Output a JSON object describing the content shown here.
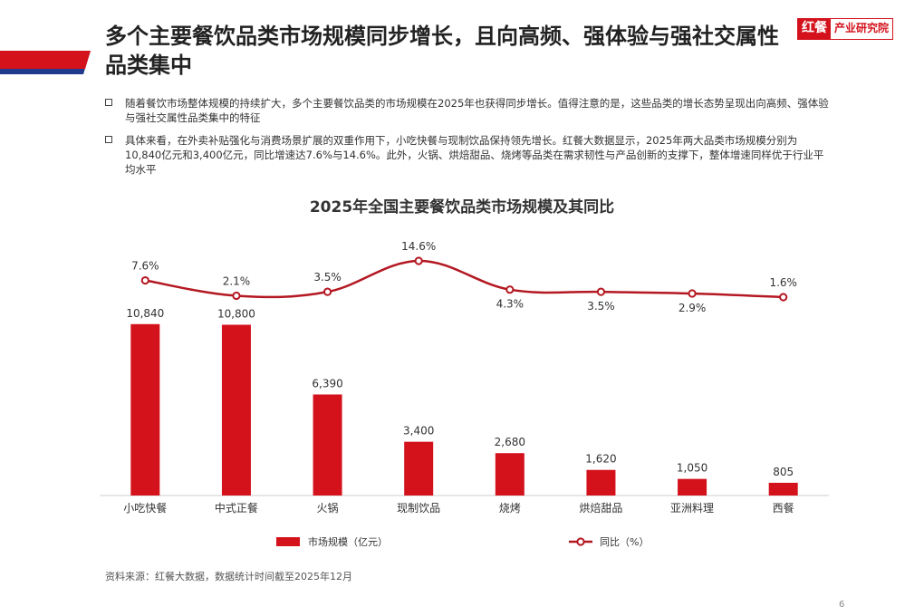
{
  "page": {
    "title": "多个主要餐饮品类市场规模同步增长，且向高频、强体验与强社交属性品类集中",
    "logo": {
      "mark": "红餐",
      "text": "产业研究院"
    },
    "bullets": [
      "随着餐饮市场整体规模的持续扩大，多个主要餐饮品类的市场规模在2025年也获得同步增长。值得注意的是，这些品类的增长态势呈现出向高频、强体验与强社交属性品类集中的特征",
      "具体来看，在外卖补贴强化与消费场景扩展的双重作用下，小吃快餐与现制饮品保持领先增长。红餐大数据显示，2025年两大品类市场规模分别为10,840亿元和3,400亿元，同比增速达7.6%与14.6%。此外，火锅、烘焙甜品、烧烤等品类在需求韧性与产品创新的支撑下，整体增速同样优于行业平均水平"
    ],
    "source": "资料来源：红餐大数据，数据统计时间截至2025年12月",
    "page_number": "6"
  },
  "colors": {
    "accent": "#d4121c",
    "line": "#b41822",
    "navy": "#1f3a8a"
  },
  "chart_data": {
    "type": "bar",
    "title": "2025年全国主要餐饮品类市场规模及其同比",
    "categories": [
      "小吃快餐",
      "中式正餐",
      "火锅",
      "现制饮品",
      "烧烤",
      "烘焙甜品",
      "亚洲料理",
      "西餐"
    ],
    "series": [
      {
        "name": "市场规模（亿元）",
        "type": "bar",
        "values": [
          10840,
          10800,
          6390,
          3400,
          2680,
          1620,
          1050,
          805
        ],
        "labels": [
          "10,840",
          "10,800",
          "6,390",
          "3,400",
          "2,680",
          "1,620",
          "1,050",
          "805"
        ]
      },
      {
        "name": "同比（%）",
        "type": "line",
        "values": [
          7.6,
          2.1,
          3.5,
          14.6,
          4.3,
          3.5,
          2.9,
          1.6
        ],
        "labels": [
          "7.6%",
          "2.1%",
          "3.5%",
          "14.6%",
          "4.3%",
          "3.5%",
          "2.9%",
          "1.6%"
        ]
      }
    ],
    "legend": "bottom"
  }
}
